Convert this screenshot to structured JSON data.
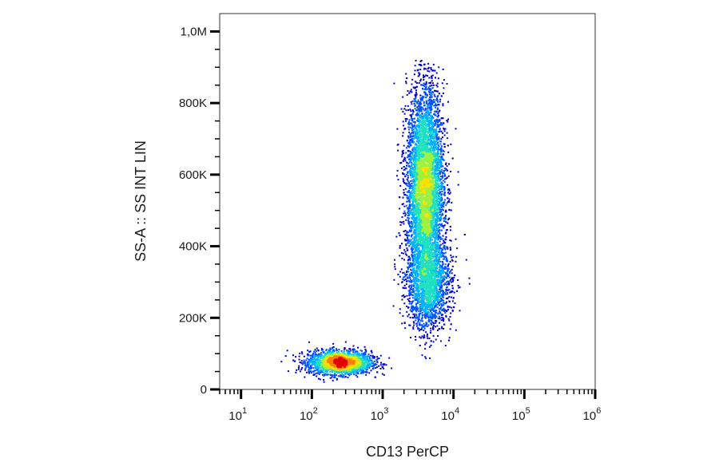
{
  "chart_data": {
    "type": "scatter",
    "subtype": "density-dot-plot",
    "title": "",
    "xlabel": "CD13 PerCP",
    "ylabel": "SS-A :: SS INT LIN",
    "x_scale": "log",
    "xlim": [
      5,
      1000000
    ],
    "ylim": [
      0,
      1050000
    ],
    "x_ticks": [
      {
        "value": 10,
        "base": "10",
        "exp": "1"
      },
      {
        "value": 100,
        "base": "10",
        "exp": "2"
      },
      {
        "value": 1000,
        "base": "10",
        "exp": "3"
      },
      {
        "value": 10000,
        "base": "10",
        "exp": "4"
      },
      {
        "value": 100000,
        "base": "10",
        "exp": "5"
      },
      {
        "value": 1000000,
        "base": "10",
        "exp": "6"
      }
    ],
    "y_ticks": [
      {
        "value": 0,
        "label": "0"
      },
      {
        "value": 200000,
        "label": "200K"
      },
      {
        "value": 400000,
        "label": "400K"
      },
      {
        "value": 600000,
        "label": "600K"
      },
      {
        "value": 800000,
        "label": "800K"
      },
      {
        "value": 1000000,
        "label": "1,0M"
      }
    ],
    "grid": false,
    "legend": "none",
    "colormap": [
      "#0000cc",
      "#0050ff",
      "#00b0ff",
      "#20e0c0",
      "#a0f040",
      "#ffe000",
      "#ff8000",
      "#e00000"
    ],
    "populations": [
      {
        "center_x": 250,
        "center_y": 75000,
        "spread_log10_x": 0.22,
        "spread_y": 16000,
        "weight": 0.22
      },
      {
        "center_x": 4000,
        "center_y": 560000,
        "spread_log10_x": 0.13,
        "spread_y": 140000,
        "weight": 0.62
      },
      {
        "center_x": 4500,
        "center_y": 290000,
        "spread_log10_x": 0.16,
        "spread_y": 60000,
        "weight": 0.16
      }
    ]
  }
}
